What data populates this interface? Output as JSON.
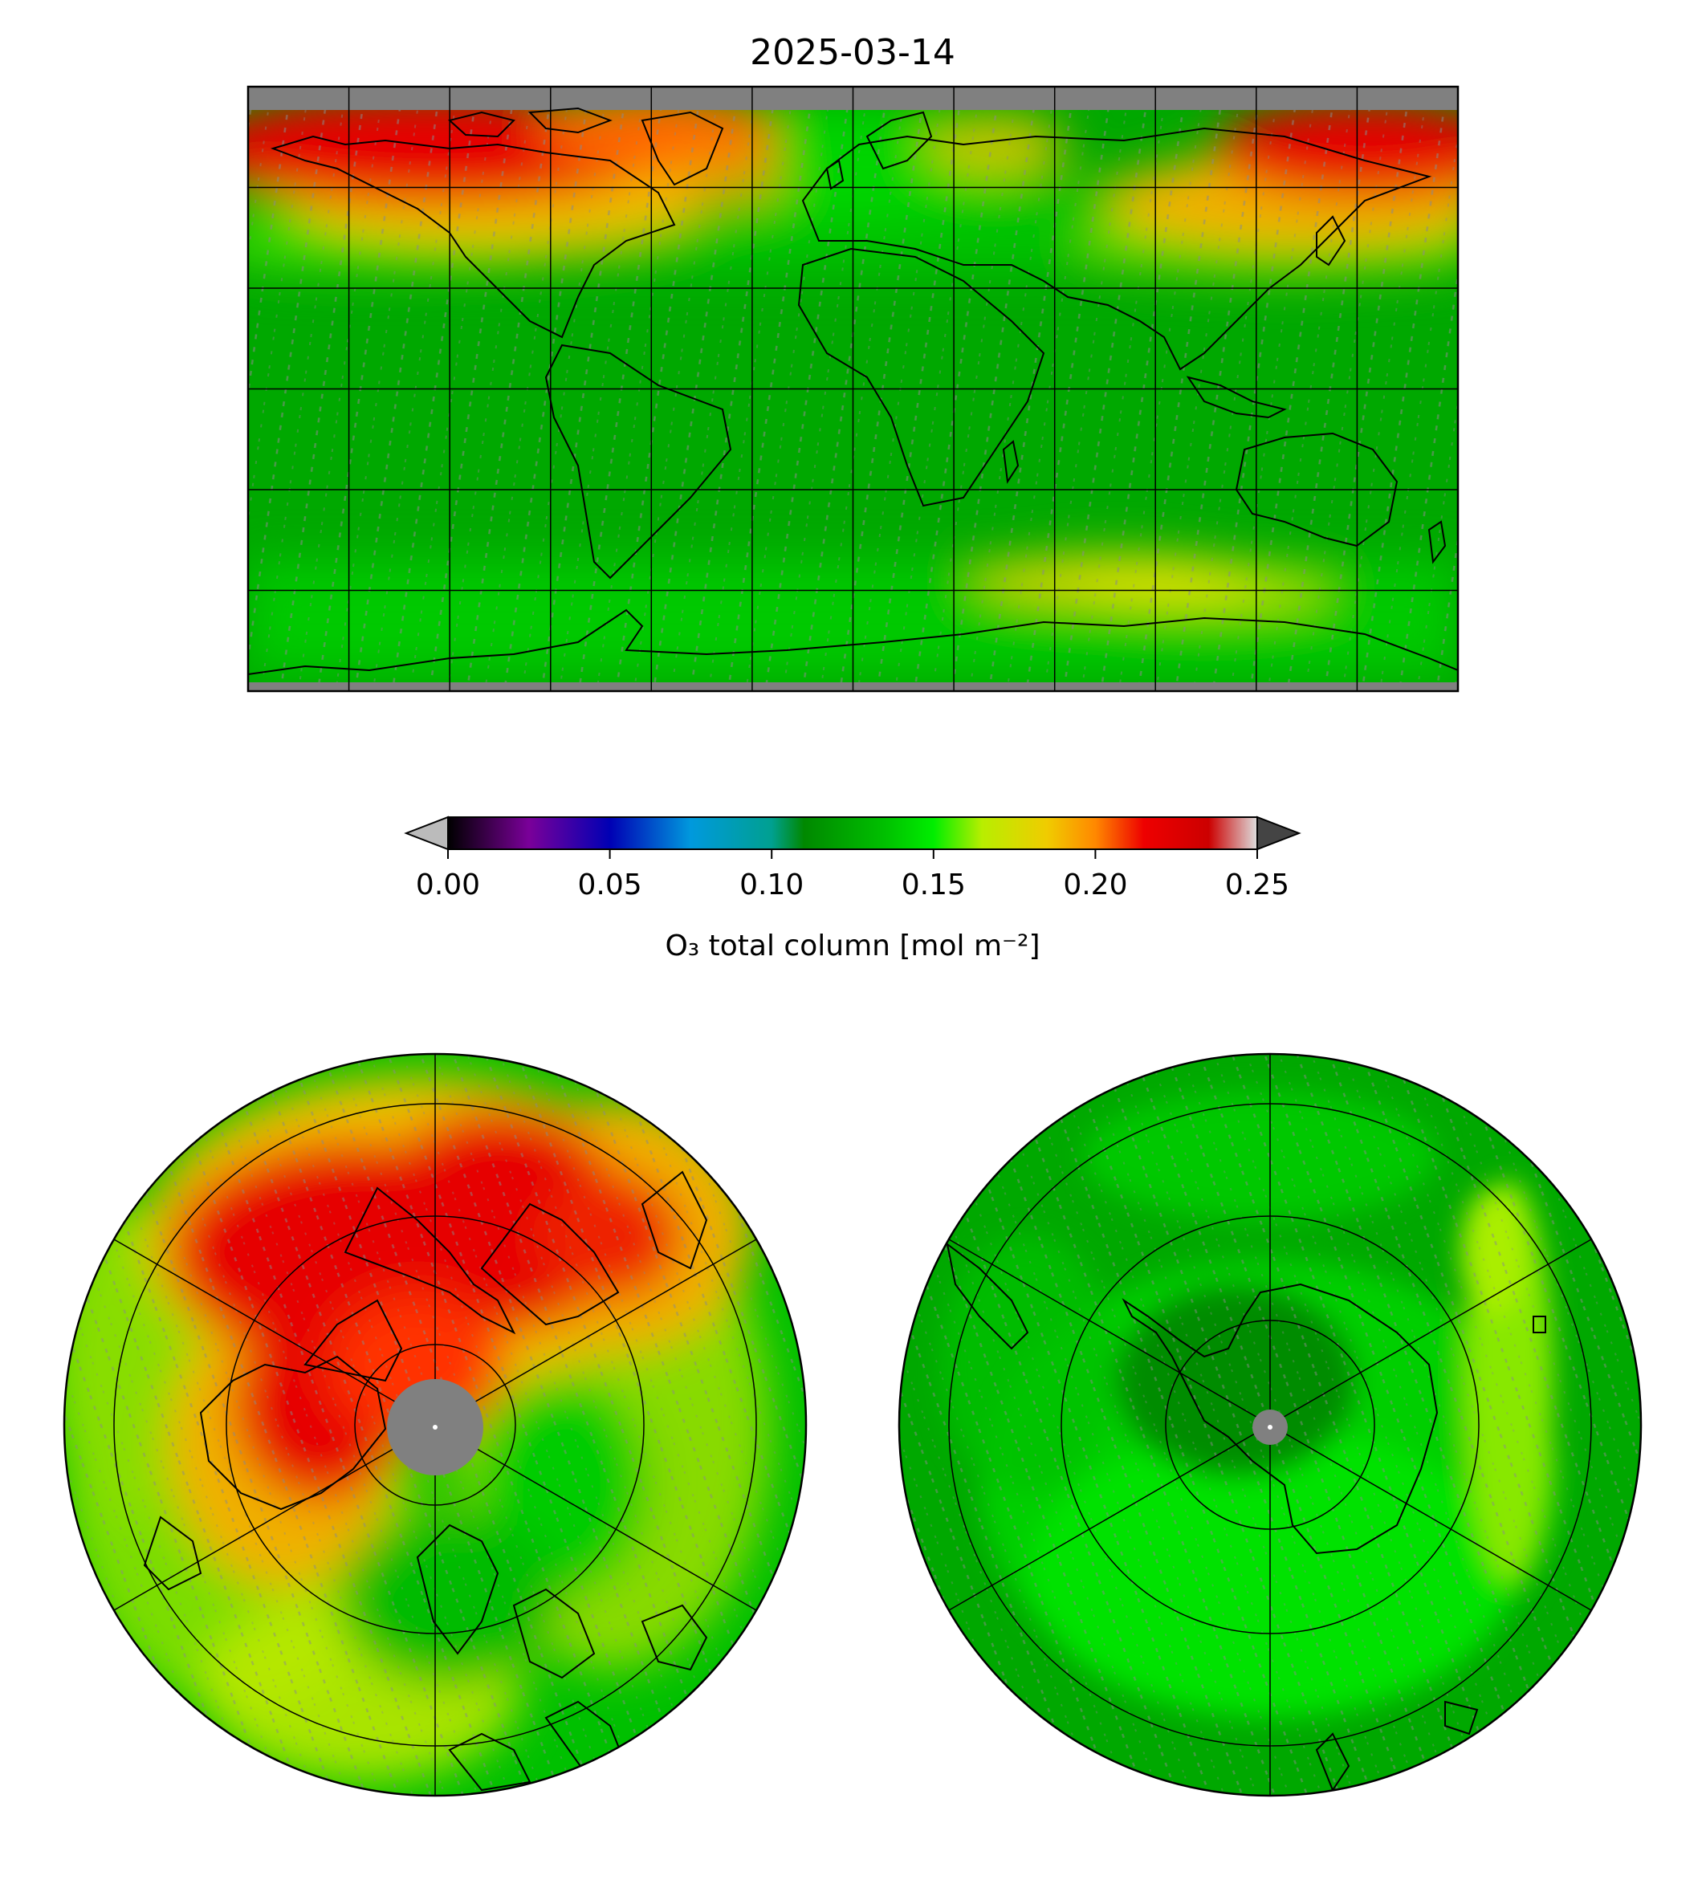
{
  "figure": {
    "title": "2025-03-14"
  },
  "colorbar": {
    "label": "O₃ total column [mol m⁻²]",
    "ticks": [
      "0.00",
      "0.05",
      "0.10",
      "0.15",
      "0.20",
      "0.25"
    ],
    "range": [
      0.0,
      0.25
    ],
    "extend": "both",
    "colormap": [
      {
        "value": 0.0,
        "color": "#000000"
      },
      {
        "value": 0.025,
        "color": "#7a0099"
      },
      {
        "value": 0.05,
        "color": "#0000b4"
      },
      {
        "value": 0.075,
        "color": "#0099dd"
      },
      {
        "value": 0.1,
        "color": "#00a090"
      },
      {
        "value": 0.11,
        "color": "#008800"
      },
      {
        "value": 0.135,
        "color": "#00c000"
      },
      {
        "value": 0.15,
        "color": "#00ee00"
      },
      {
        "value": 0.165,
        "color": "#b8ee00"
      },
      {
        "value": 0.185,
        "color": "#f0cc00"
      },
      {
        "value": 0.2,
        "color": "#ff8800"
      },
      {
        "value": 0.215,
        "color": "#ee0000"
      },
      {
        "value": 0.235,
        "color": "#cc0000"
      },
      {
        "value": 0.25,
        "color": "#dddddd"
      }
    ],
    "under_color": "#bbbbbb",
    "over_color": "#444444"
  },
  "colors": {
    "missing": "#808080",
    "high": "#e60000",
    "mid": "#f0c000",
    "low": "#00c800",
    "base": "#00a800"
  },
  "panels": {
    "global": {
      "projection": "plate-carree",
      "grid": "30-degree",
      "coastlines": true
    },
    "north_polar": {
      "projection": "north-polar-stereographic",
      "coastlines": true
    },
    "south_polar": {
      "projection": "south-polar-stereographic",
      "coastlines": true
    }
  }
}
